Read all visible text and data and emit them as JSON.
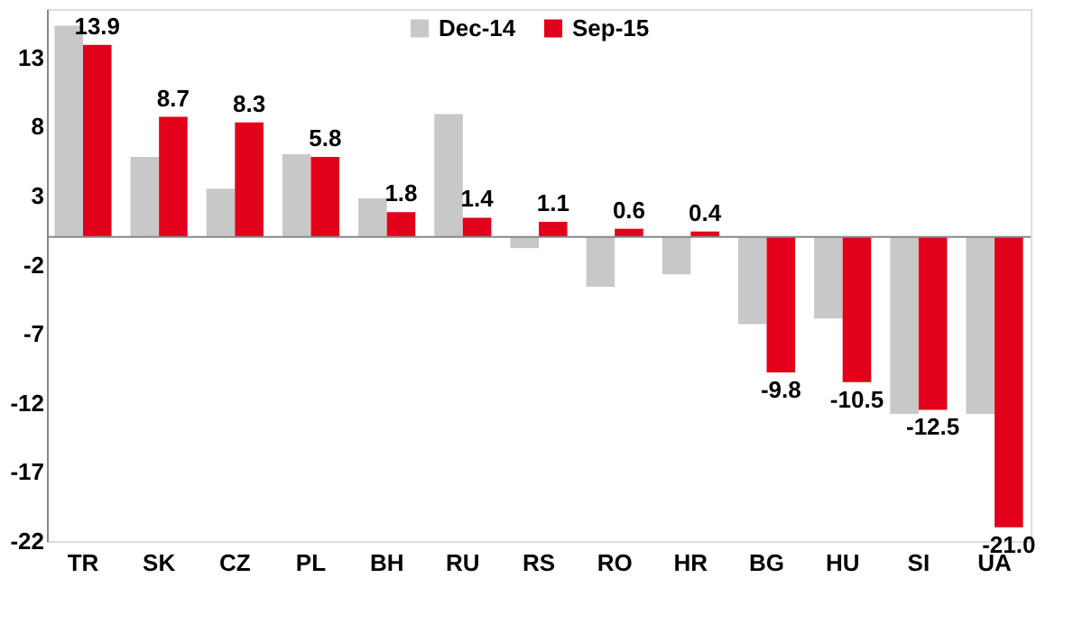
{
  "chart_data": {
    "type": "bar",
    "categories": [
      "TR",
      "SK",
      "CZ",
      "PL",
      "BH",
      "RU",
      "RS",
      "RO",
      "HR",
      "BG",
      "HU",
      "SI",
      "UA"
    ],
    "series": [
      {
        "name": "Dec-14",
        "color": "#c8c8c8",
        "values": [
          15.3,
          5.8,
          3.5,
          6.0,
          2.8,
          8.9,
          -0.8,
          -3.6,
          -2.7,
          -6.3,
          -5.9,
          -12.8,
          -12.8
        ]
      },
      {
        "name": "Sep-15",
        "color": "#e2001a",
        "values": [
          13.9,
          8.7,
          8.3,
          5.8,
          1.8,
          1.4,
          1.1,
          0.6,
          0.4,
          -9.8,
          -10.5,
          -12.5,
          -21.0
        ],
        "value_labels": [
          "13.9",
          "8.7",
          "8.3",
          "5.8",
          "1.8",
          "1.4",
          "1.1",
          "0.6",
          "0.4",
          "-9.8",
          "-10.5",
          "-12.5",
          "-21.0"
        ]
      }
    ],
    "ylim": [
      -22,
      16.5
    ],
    "yticks": [
      13,
      8,
      3,
      -2,
      -7,
      -12,
      -17,
      -22
    ],
    "grid": false,
    "legend": "top"
  }
}
